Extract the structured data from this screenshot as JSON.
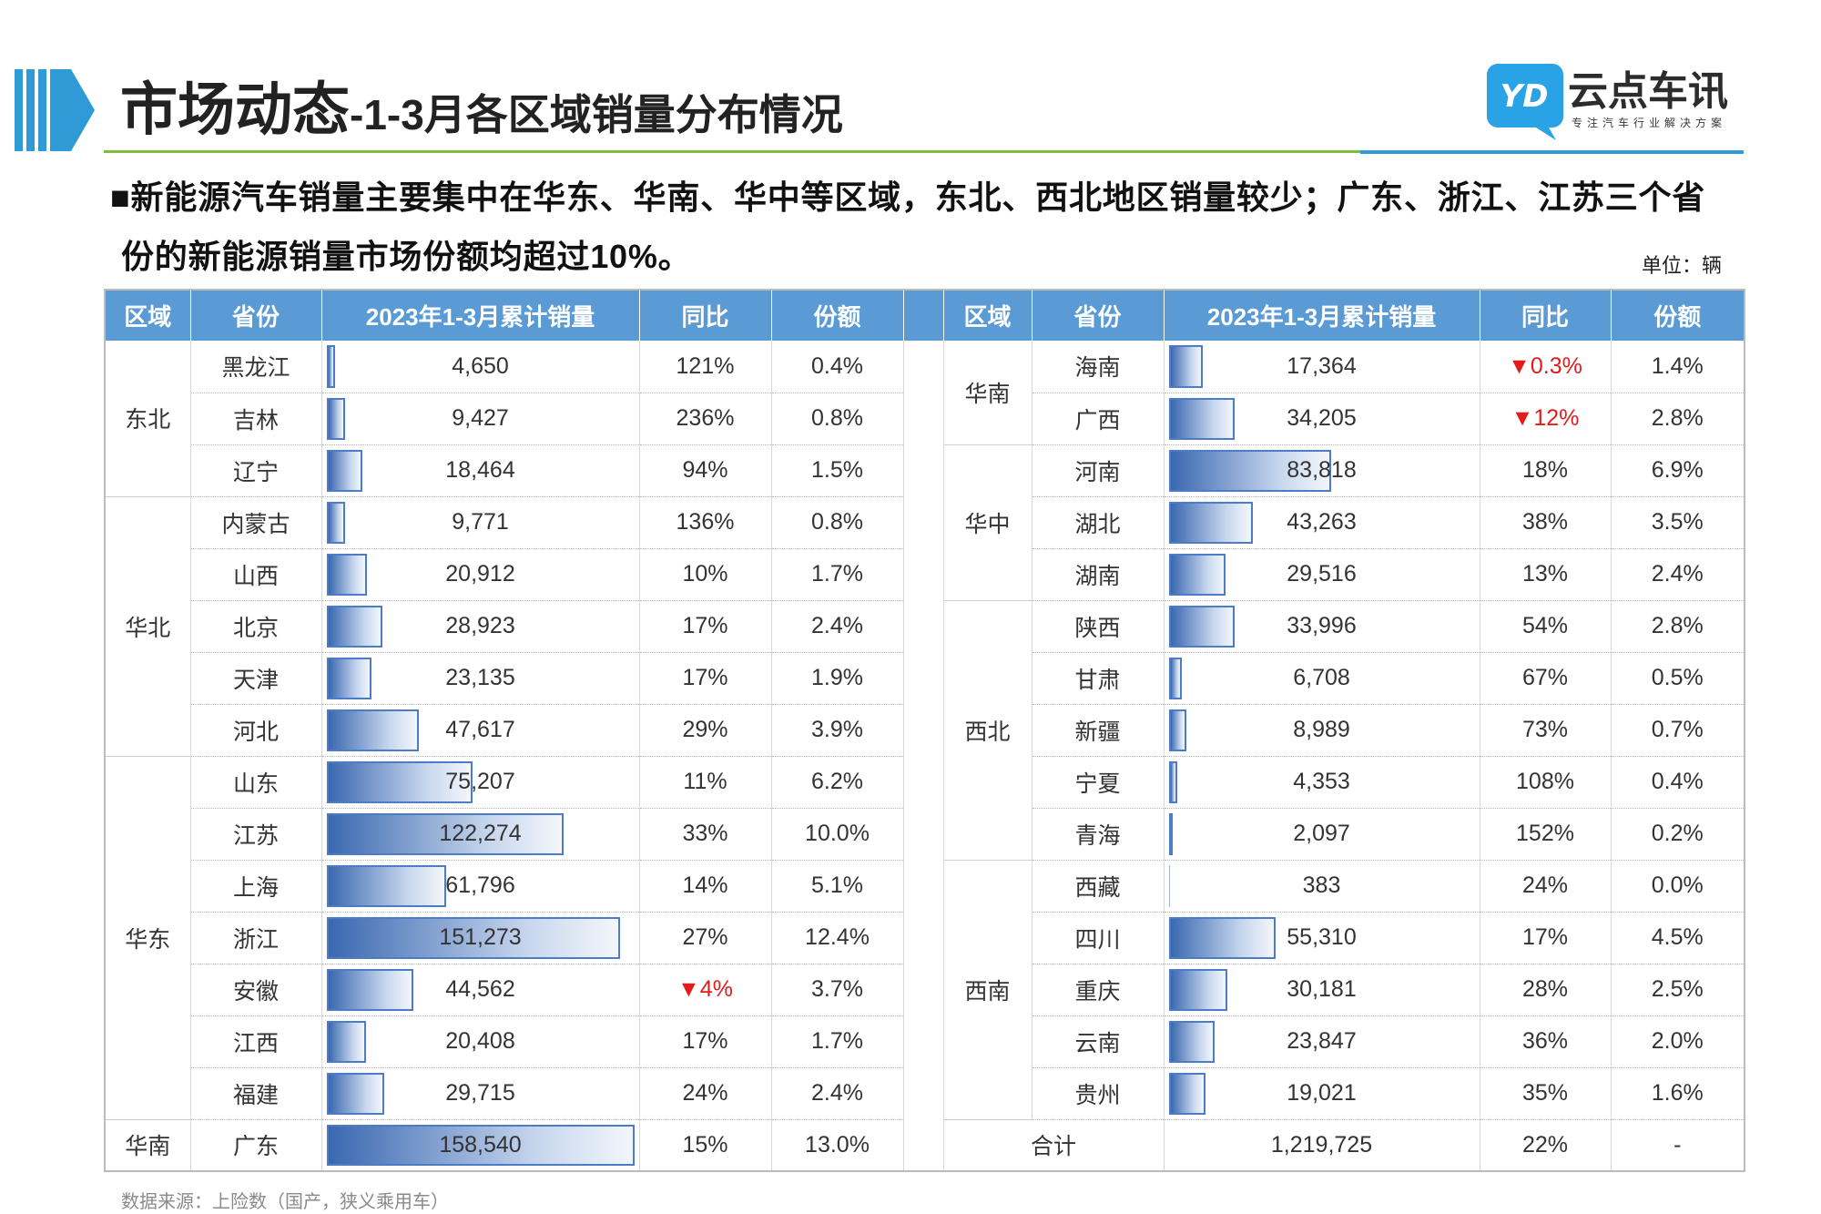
{
  "colors": {
    "header": "#5B9BD5",
    "negative": "#E31B1B",
    "bar": "#3A68B0",
    "underline": "#7DBE3C",
    "accent": "#2E9BD6",
    "logo": "#29A3E6"
  },
  "header": {
    "title_main": "市场动态",
    "title_sub": "-1-3月各区域销量分布情况"
  },
  "logo": {
    "mark": "YD",
    "name": "云点车讯",
    "tagline": "专注汽车行业解决方案"
  },
  "summary": {
    "bullet": "■",
    "line1": "新能源汽车销量主要集中在华东、华南、华中等区域，东北、西北地区销量较少；广东、浙江、江苏三个省",
    "line2": "份的新能源销量市场份额均超过10%。"
  },
  "unit": "单位：辆",
  "table": {
    "columns": [
      "区域",
      "省份",
      "2023年1-3月累计销量",
      "同比",
      "份额"
    ],
    "left": [
      {
        "region": "东北",
        "rows": [
          {
            "province": "黑龙江",
            "sales": "4,650",
            "yoy": "121%",
            "share": "0.4%"
          },
          {
            "province": "吉林",
            "sales": "9,427",
            "yoy": "236%",
            "share": "0.8%"
          },
          {
            "province": "辽宁",
            "sales": "18,464",
            "yoy": "94%",
            "share": "1.5%"
          }
        ]
      },
      {
        "region": "华北",
        "rows": [
          {
            "province": "内蒙古",
            "sales": "9,771",
            "yoy": "136%",
            "share": "0.8%"
          },
          {
            "province": "山西",
            "sales": "20,912",
            "yoy": "10%",
            "share": "1.7%"
          },
          {
            "province": "北京",
            "sales": "28,923",
            "yoy": "17%",
            "share": "2.4%"
          },
          {
            "province": "天津",
            "sales": "23,135",
            "yoy": "17%",
            "share": "1.9%"
          },
          {
            "province": "河北",
            "sales": "47,617",
            "yoy": "29%",
            "share": "3.9%"
          }
        ]
      },
      {
        "region": "华东",
        "rows": [
          {
            "province": "山东",
            "sales": "75,207",
            "yoy": "11%",
            "share": "6.2%"
          },
          {
            "province": "江苏",
            "sales": "122,274",
            "yoy": "33%",
            "share": "10.0%"
          },
          {
            "province": "上海",
            "sales": "61,796",
            "yoy": "14%",
            "share": "5.1%"
          },
          {
            "province": "浙江",
            "sales": "151,273",
            "yoy": "27%",
            "share": "12.4%"
          },
          {
            "province": "安徽",
            "sales": "44,562",
            "yoy": "▼4%",
            "share": "3.7%"
          },
          {
            "province": "江西",
            "sales": "20,408",
            "yoy": "17%",
            "share": "1.7%"
          },
          {
            "province": "福建",
            "sales": "29,715",
            "yoy": "24%",
            "share": "2.4%"
          }
        ]
      },
      {
        "region": "华南",
        "rows": [
          {
            "province": "广东",
            "sales": "158,540",
            "yoy": "15%",
            "share": "13.0%"
          }
        ]
      }
    ],
    "right": [
      {
        "region": "华南",
        "rows": [
          {
            "province": "海南",
            "sales": "17,364",
            "yoy": "▼0.3%",
            "share": "1.4%"
          },
          {
            "province": "广西",
            "sales": "34,205",
            "yoy": "▼12%",
            "share": "2.8%"
          }
        ]
      },
      {
        "region": "华中",
        "rows": [
          {
            "province": "河南",
            "sales": "83,818",
            "yoy": "18%",
            "share": "6.9%"
          },
          {
            "province": "湖北",
            "sales": "43,263",
            "yoy": "38%",
            "share": "3.5%"
          },
          {
            "province": "湖南",
            "sales": "29,516",
            "yoy": "13%",
            "share": "2.4%"
          }
        ]
      },
      {
        "region": "西北",
        "rows": [
          {
            "province": "陕西",
            "sales": "33,996",
            "yoy": "54%",
            "share": "2.8%"
          },
          {
            "province": "甘肃",
            "sales": "6,708",
            "yoy": "67%",
            "share": "0.5%"
          },
          {
            "province": "新疆",
            "sales": "8,989",
            "yoy": "73%",
            "share": "0.7%"
          },
          {
            "province": "宁夏",
            "sales": "4,353",
            "yoy": "108%",
            "share": "0.4%"
          },
          {
            "province": "青海",
            "sales": "2,097",
            "yoy": "152%",
            "share": "0.2%"
          }
        ]
      },
      {
        "region": "西南",
        "rows": [
          {
            "province": "西藏",
            "sales": "383",
            "yoy": "24%",
            "share": "0.0%"
          },
          {
            "province": "四川",
            "sales": "55,310",
            "yoy": "17%",
            "share": "4.5%"
          },
          {
            "province": "重庆",
            "sales": "30,181",
            "yoy": "28%",
            "share": "2.5%"
          },
          {
            "province": "云南",
            "sales": "23,847",
            "yoy": "36%",
            "share": "2.0%"
          },
          {
            "province": "贵州",
            "sales": "19,021",
            "yoy": "35%",
            "share": "1.6%"
          }
        ]
      }
    ],
    "total": {
      "label": "合计",
      "sales": "1,219,725",
      "yoy": "22%",
      "share": "-"
    }
  },
  "source": "数据来源：上险数（国产，狭义乘用车）"
}
